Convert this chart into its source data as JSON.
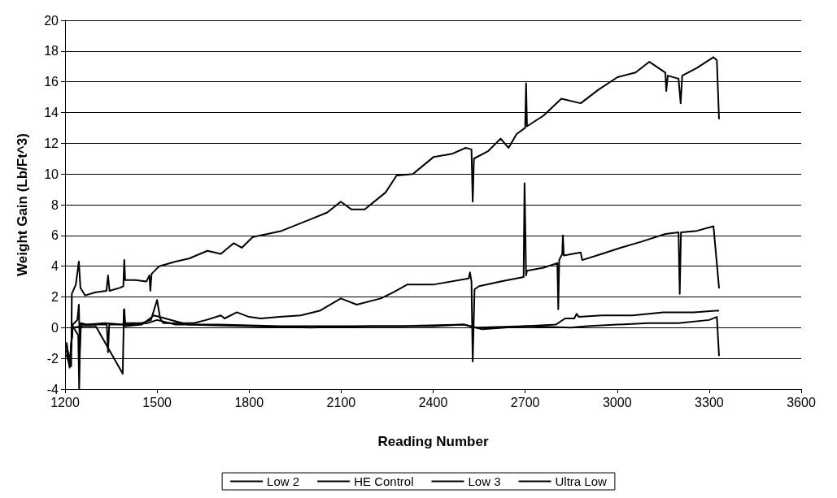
{
  "chart_data": {
    "type": "line",
    "xlabel": "Reading Number",
    "ylabel": "Weight Gain (Lb/Ft^3)",
    "xlim": [
      1200,
      3600
    ],
    "xticks": [
      1200,
      1500,
      1800,
      2100,
      2400,
      2700,
      3000,
      3300,
      3600
    ],
    "ylim": [
      -4,
      20
    ],
    "yticks": [
      -4,
      -2,
      0,
      2,
      4,
      6,
      8,
      10,
      12,
      14,
      16,
      18,
      20
    ],
    "grid": "y",
    "legend": "bottom",
    "marker": "none",
    "line_style": "solid",
    "series": [
      {
        "name": "Low 2",
        "color": "#000000",
        "x": [
          1205,
          1215,
          1220,
          1222,
          1235,
          1245,
          1250,
          1265,
          1300,
          1335,
          1340,
          1345,
          1380,
          1390,
          1393,
          1396,
          1430,
          1465,
          1475,
          1478,
          1482,
          1507,
          1560,
          1604,
          1664,
          1708,
          1750,
          1776,
          1812,
          1860,
          1906,
          1994,
          2055,
          2099,
          2133,
          2177,
          2245,
          2281,
          2334,
          2401,
          2460,
          2506,
          2525,
          2529,
          2533,
          2580,
          2620,
          2646,
          2672,
          2700,
          2703,
          2706,
          2760,
          2818,
          2881,
          2940,
          3001,
          3060,
          3105,
          3157,
          3160,
          3165,
          3200,
          3207,
          3212,
          3260,
          3314,
          3325,
          3332
        ],
        "values": [
          -1.2,
          -2.5,
          -2.5,
          2.2,
          2.8,
          4.3,
          2.6,
          2.1,
          2.3,
          2.4,
          3.4,
          2.4,
          2.6,
          2.7,
          4.4,
          3.1,
          3.1,
          3.0,
          3.4,
          2.4,
          3.5,
          4.0,
          4.3,
          4.5,
          5.0,
          4.8,
          5.5,
          5.2,
          5.9,
          6.1,
          6.3,
          7.0,
          7.5,
          8.2,
          7.7,
          7.7,
          8.8,
          9.9,
          10.0,
          11.1,
          11.3,
          11.7,
          11.6,
          8.2,
          11.0,
          11.5,
          12.3,
          11.7,
          12.6,
          13.0,
          15.9,
          13.1,
          13.8,
          14.9,
          14.6,
          15.5,
          16.3,
          16.6,
          17.3,
          16.6,
          15.4,
          16.4,
          16.2,
          14.6,
          16.4,
          16.9,
          17.6,
          17.4,
          13.6
        ]
      },
      {
        "name": "HE Control",
        "color": "#000000",
        "x": [
          1205,
          1215,
          1225,
          1240,
          1245,
          1248,
          1252,
          1270,
          1330,
          1390,
          1393,
          1396,
          1450,
          1480,
          1500,
          1510,
          1520,
          1560,
          1620,
          1660,
          1708,
          1720,
          1760,
          1800,
          1838,
          1900,
          1968,
          2030,
          2099,
          2151,
          2229,
          2270,
          2315,
          2400,
          2516,
          2520,
          2525,
          2529,
          2535,
          2550,
          2620,
          2695,
          2698,
          2703,
          2706,
          2760,
          2805,
          2808,
          2811,
          2821,
          2823,
          2826,
          2881,
          2886,
          2950,
          3011,
          3080,
          3157,
          3200,
          3204,
          3208,
          3260,
          3314,
          3332
        ],
        "values": [
          -1.5,
          -2.6,
          0.2,
          0.5,
          1.5,
          -1.5,
          0.3,
          0.2,
          0.3,
          0.2,
          1.2,
          0.3,
          0.3,
          0.5,
          1.8,
          0.6,
          0.3,
          0.3,
          0.3,
          0.5,
          0.8,
          0.6,
          1.0,
          0.7,
          0.6,
          0.7,
          0.8,
          1.1,
          1.9,
          1.5,
          1.9,
          2.3,
          2.8,
          2.8,
          3.2,
          3.6,
          3.0,
          -2.2,
          2.5,
          2.7,
          3.0,
          3.3,
          9.4,
          3.4,
          3.7,
          3.9,
          4.2,
          1.2,
          4.4,
          4.8,
          6.0,
          4.7,
          4.9,
          4.4,
          4.8,
          5.2,
          5.6,
          6.1,
          6.2,
          2.2,
          6.2,
          6.3,
          6.6,
          2.6
        ]
      },
      {
        "name": "Low 3",
        "color": "#000000",
        "x": [
          1205,
          1215,
          1225,
          1243,
          1246,
          1250,
          1300,
          1336,
          1340,
          1344,
          1400,
          1470,
          1500,
          1560,
          1700,
          1900,
          2100,
          2300,
          2500,
          2540,
          2700,
          2800,
          2830,
          2860,
          2868,
          2875,
          2950,
          3050,
          3150,
          3250,
          3320,
          3330
        ],
        "values": [
          -1.8,
          -2.4,
          0.1,
          -0.5,
          -4.0,
          0.2,
          0.2,
          0.2,
          -1.6,
          0.2,
          0.2,
          0.3,
          0.5,
          0.2,
          0.2,
          0.1,
          0.1,
          0.1,
          0.2,
          0.0,
          0.1,
          0.2,
          0.6,
          0.6,
          0.9,
          0.7,
          0.8,
          0.8,
          1.0,
          1.0,
          1.1,
          1.1
        ]
      },
      {
        "name": "Ultra Low",
        "color": "#000000",
        "x": [
          1205,
          1215,
          1225,
          1260,
          1300,
          1388,
          1392,
          1395,
          1450,
          1490,
          1600,
          1800,
          2000,
          2200,
          2400,
          2500,
          2560,
          2700,
          2850,
          2900,
          3000,
          3100,
          3200,
          3300,
          3325,
          3332
        ],
        "values": [
          -1.0,
          -2.3,
          0.0,
          0.1,
          0.1,
          -3.0,
          1.2,
          0.1,
          0.2,
          0.8,
          0.2,
          0.1,
          0.0,
          0.1,
          0.1,
          0.2,
          -0.1,
          0.1,
          0.0,
          0.1,
          0.2,
          0.3,
          0.3,
          0.5,
          0.7,
          -1.8
        ]
      }
    ]
  }
}
